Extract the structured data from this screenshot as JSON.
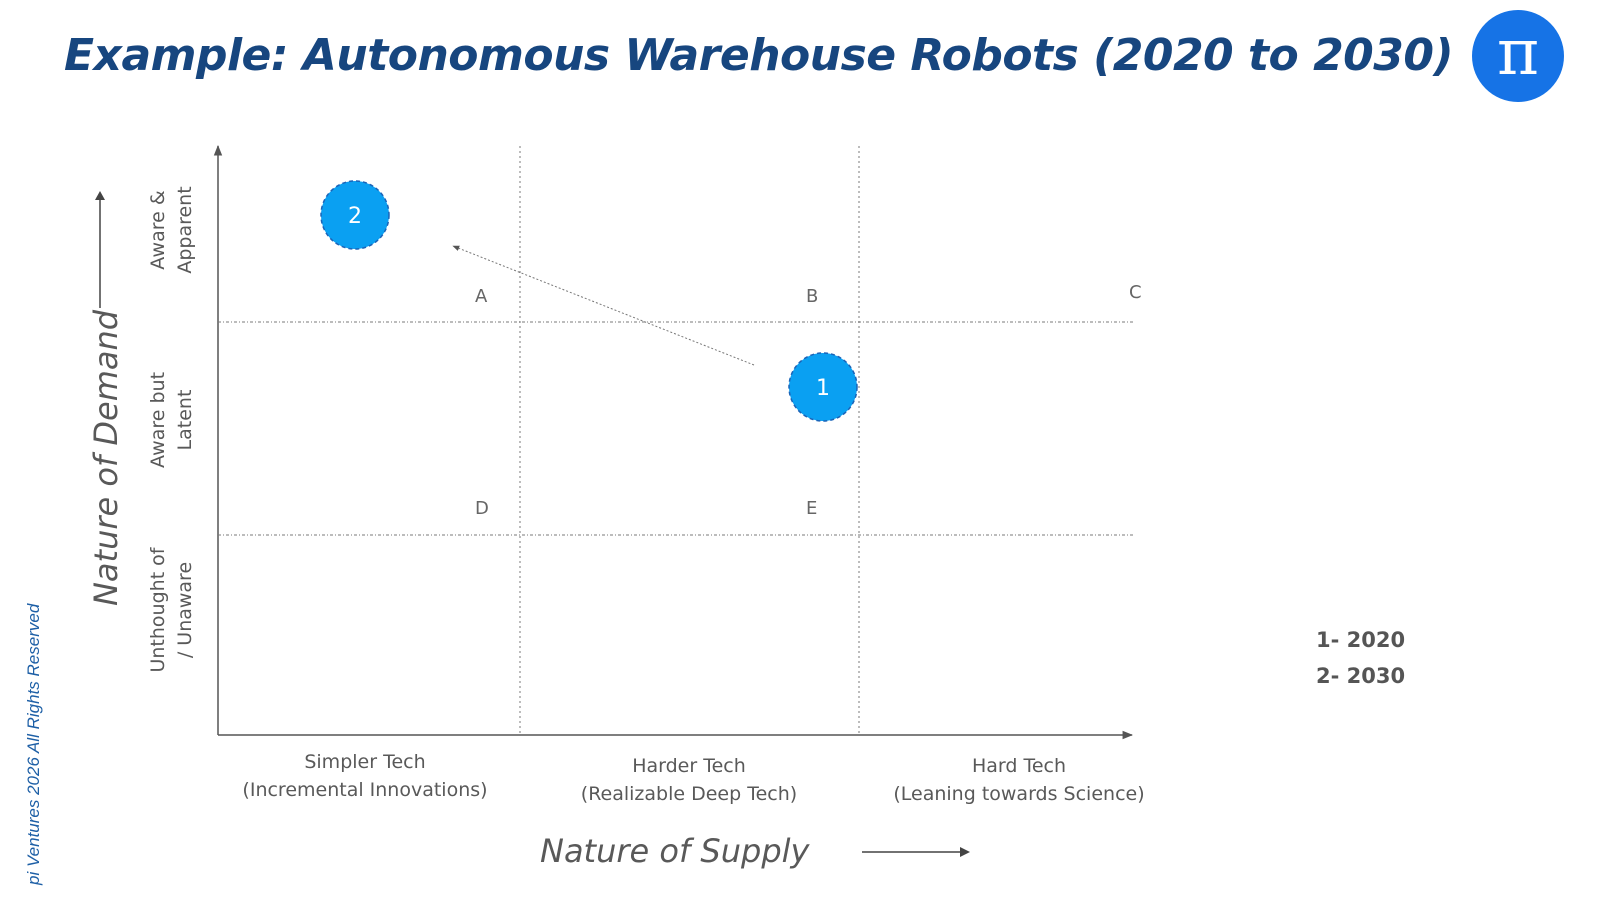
{
  "slide": {
    "title": "Example: Autonomous Warehouse Robots (2020 to 2030)",
    "logo_symbol": "π",
    "watermark": "pi Ventures 2026 All Rights Reserved"
  },
  "diagram": {
    "y_axis_title": "Nature of Demand",
    "x_axis_title": "Nature of Supply",
    "x_categories": [
      {
        "line1": "Simpler Tech",
        "line2": "(Incremental Innovations)"
      },
      {
        "line1": "Harder Tech",
        "line2": "(Realizable Deep Tech)"
      },
      {
        "line1": "Hard Tech",
        "line2": "(Leaning towards Science)"
      }
    ],
    "y_categories": [
      {
        "line1": "Aware &",
        "line2": "Apparent"
      },
      {
        "line1": "Aware but",
        "line2": "Latent"
      },
      {
        "line1": "Unthought of",
        "line2": "/ Unaware"
      }
    ],
    "quadrant_letters": [
      "A",
      "B",
      "C",
      "D",
      "E"
    ],
    "points": [
      {
        "label": "1",
        "year": "2020",
        "supply_col": 2,
        "demand_row": 2
      },
      {
        "label": "2",
        "year": "2030",
        "supply_col": 1,
        "demand_row": 1
      }
    ],
    "point_color": "#0aa0f2"
  },
  "legend": {
    "items": [
      "1- 2020",
      "2- 2030"
    ]
  }
}
